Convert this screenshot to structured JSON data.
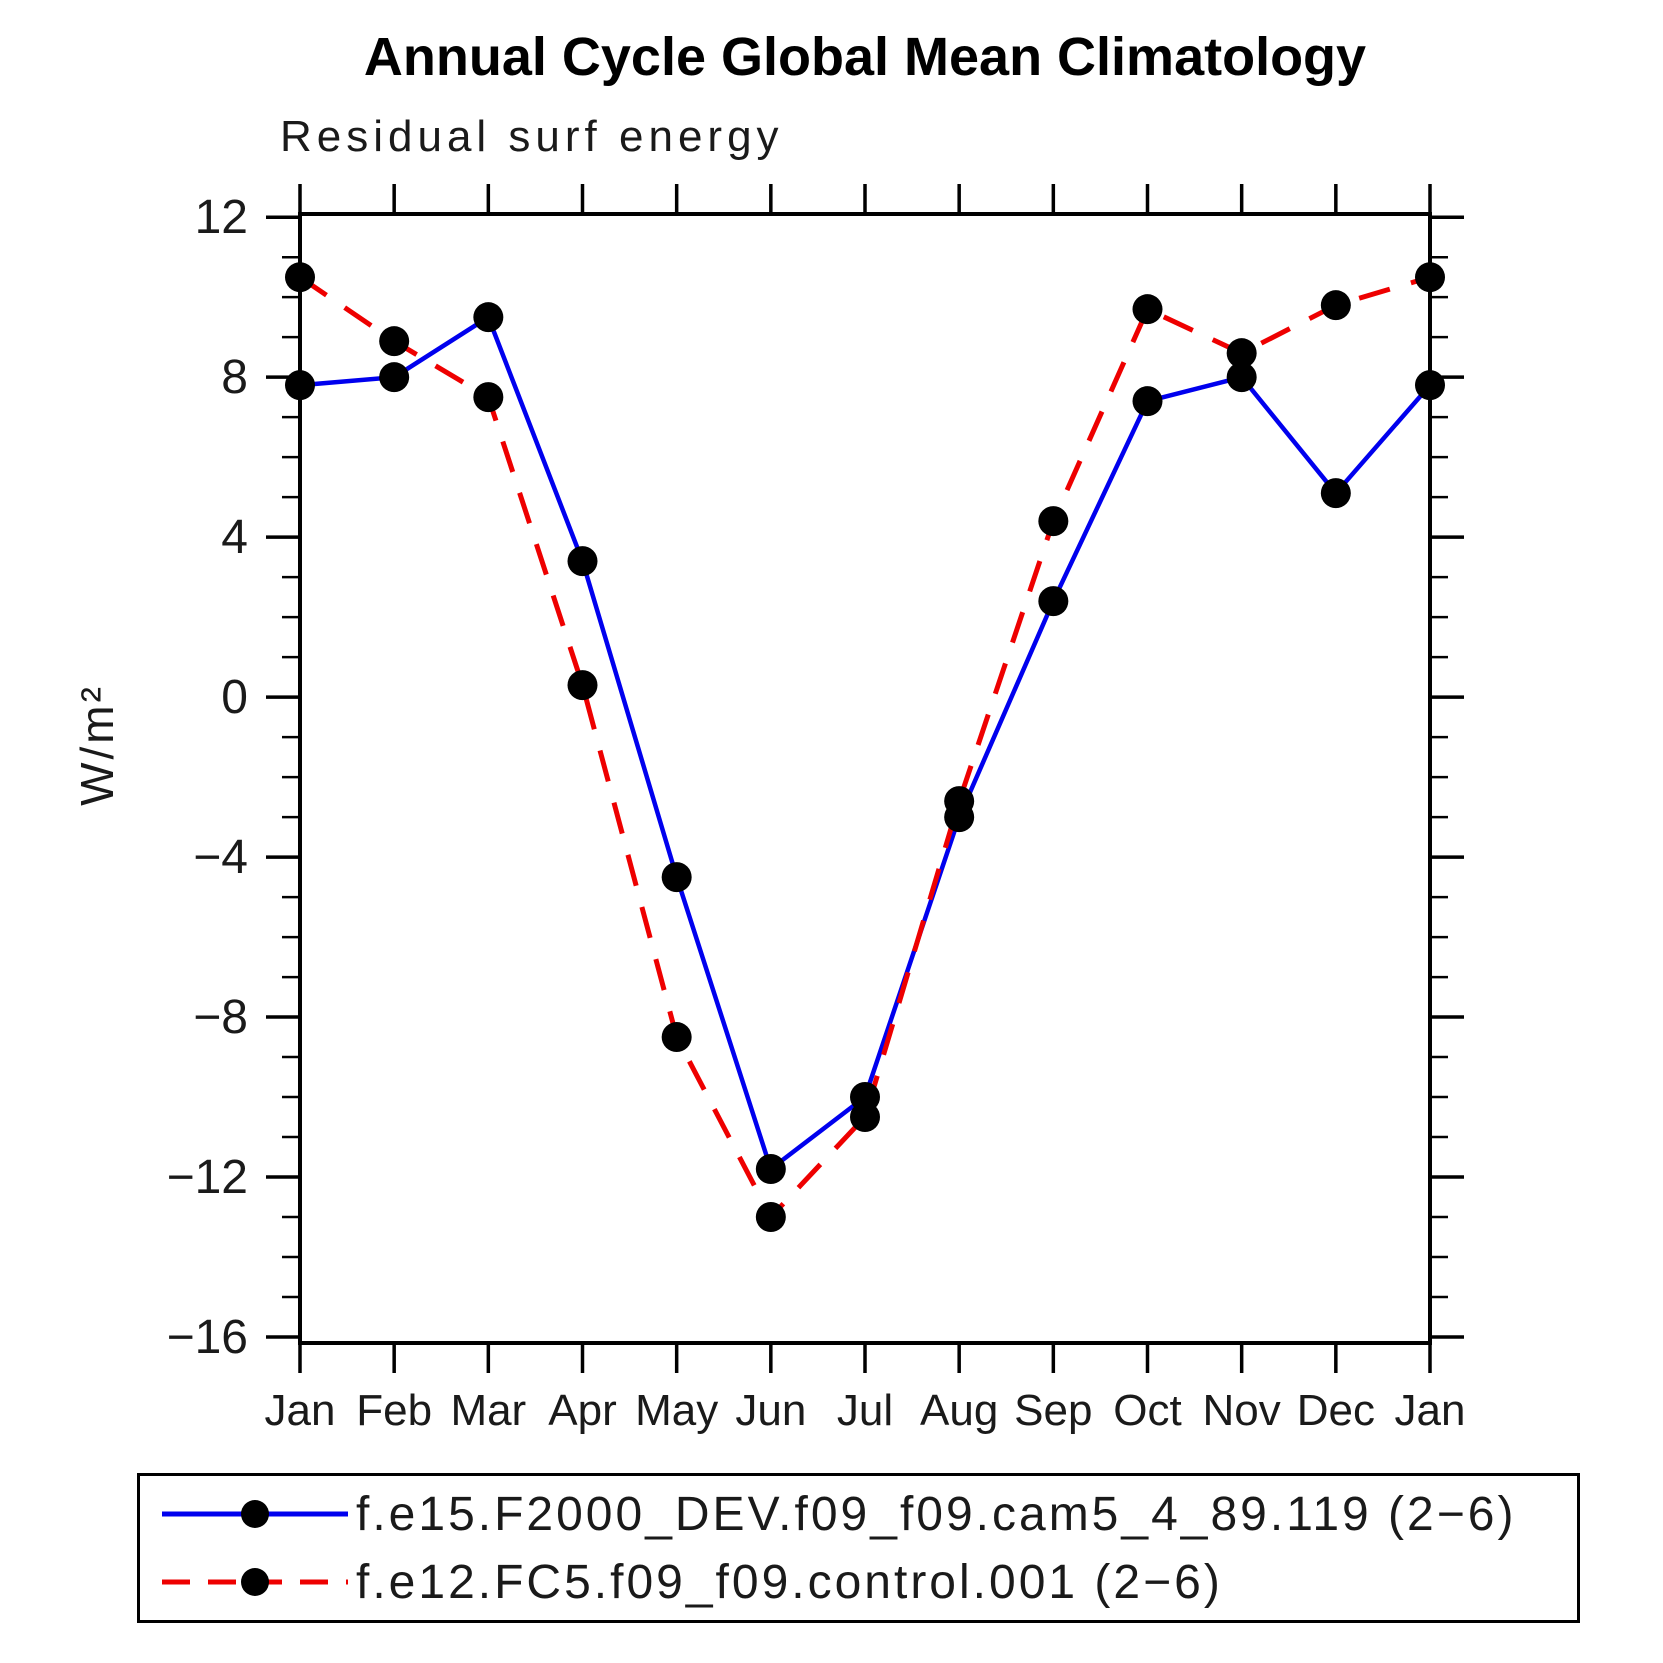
{
  "chart_data": {
    "type": "line",
    "title": "Annual Cycle Global Mean Climatology",
    "subtitle": "Residual surf energy",
    "xlabel": "",
    "ylabel": "W/m²",
    "categories": [
      "Jan",
      "Feb",
      "Mar",
      "Apr",
      "May",
      "Jun",
      "Jul",
      "Aug",
      "Sep",
      "Oct",
      "Nov",
      "Dec",
      "Jan"
    ],
    "series": [
      {
        "name": "f.e15.F2000_DEV.f09_f09.cam5_4_89.119 (2−6)",
        "color": "#0000ee",
        "line_style": "solid",
        "marker": "circle",
        "marker_color": "#000000",
        "values": [
          7.8,
          8.0,
          9.5,
          3.4,
          -4.5,
          -11.8,
          -10.0,
          -3.0,
          2.4,
          7.4,
          8.0,
          5.1,
          7.8
        ]
      },
      {
        "name": "f.e12.FC5.f09_f09.control.001 (2−6)",
        "color": "#ee0000",
        "line_style": "dashed",
        "marker": "circle",
        "marker_color": "#000000",
        "values": [
          10.5,
          8.9,
          7.5,
          0.3,
          -8.5,
          -13.0,
          -10.5,
          -2.6,
          4.4,
          9.7,
          8.6,
          9.8,
          10.5
        ]
      }
    ],
    "ylim": [
      -16.15,
      12.08
    ],
    "yticks_major": [
      12,
      8,
      4,
      0,
      -4,
      -8,
      -12,
      -16
    ],
    "ytick_labels": [
      "12",
      "8",
      "4",
      "0",
      "−4",
      "−8",
      "−12",
      "−16"
    ],
    "minor_tick_interval": 1,
    "grid": false,
    "legend_position": "bottom",
    "axis_color": "#000000",
    "text_color": "#1a1a1a"
  }
}
